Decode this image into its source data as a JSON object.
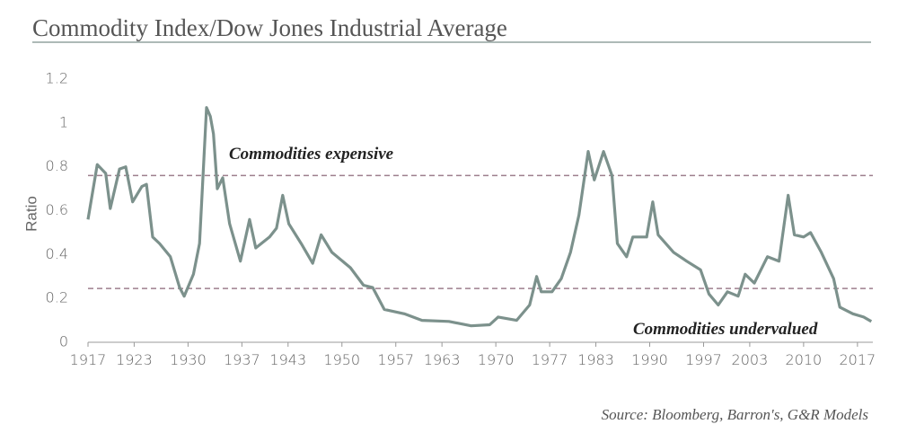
{
  "chart_data": {
    "type": "line",
    "title": "Commodity Index/Dow Jones Industrial Average",
    "y_label": "Ratio",
    "source": "Source: Bloomberg, Barron's, G&R Models",
    "xlim": [
      1917,
      2019
    ],
    "xticks": [
      1917,
      1923,
      1930,
      1937,
      1943,
      1950,
      1957,
      1963,
      1970,
      1977,
      1983,
      1990,
      1997,
      2003,
      2010,
      2017
    ],
    "ylim": [
      0,
      1.2
    ],
    "yticks": [
      0,
      0.2,
      0.4,
      0.6,
      0.8,
      1,
      1.2
    ],
    "annotations": [
      {
        "text": "Commodities expensive",
        "y": 0.76
      },
      {
        "text": "Commodities undervalued",
        "y": 0.245
      }
    ],
    "series": [
      {
        "name": "Commodity Index/DJIA",
        "color": "#7c918c",
        "x": [
          1917.0,
          1918.2,
          1919.3,
          1919.9,
          1921.1,
          1921.9,
          1922.8,
          1924.0,
          1924.6,
          1925.4,
          1926.3,
          1927.7,
          1928.9,
          1929.5,
          1930.7,
          1931.5,
          1932.4,
          1932.9,
          1933.3,
          1933.8,
          1934.5,
          1935.4,
          1936.8,
          1938.0,
          1938.8,
          1940.6,
          1941.5,
          1942.3,
          1943.1,
          1944.7,
          1946.2,
          1947.3,
          1948.7,
          1951.1,
          1952.8,
          1954.0,
          1955.5,
          1958.1,
          1960.4,
          1963.9,
          1966.8,
          1969.2,
          1970.3,
          1972.7,
          1974.4,
          1975.3,
          1975.9,
          1977.3,
          1978.5,
          1979.7,
          1980.8,
          1982.0,
          1982.8,
          1984.0,
          1985.1,
          1985.8,
          1987.0,
          1987.8,
          1989.6,
          1990.4,
          1991.1,
          1993.1,
          1994.8,
          1996.6,
          1997.7,
          1998.9,
          2000.1,
          2001.5,
          2002.4,
          2003.6,
          2005.3,
          2006.8,
          2008.0,
          2008.8,
          2010.0,
          2010.9,
          2012.3,
          2013.9,
          2014.7,
          2016.4,
          2017.8,
          2018.8
        ],
        "values": [
          0.56,
          0.81,
          0.77,
          0.61,
          0.79,
          0.8,
          0.64,
          0.71,
          0.72,
          0.48,
          0.45,
          0.39,
          0.25,
          0.21,
          0.31,
          0.45,
          1.07,
          1.03,
          0.95,
          0.7,
          0.75,
          0.54,
          0.37,
          0.56,
          0.43,
          0.48,
          0.52,
          0.67,
          0.54,
          0.45,
          0.36,
          0.49,
          0.41,
          0.34,
          0.26,
          0.25,
          0.15,
          0.13,
          0.1,
          0.095,
          0.075,
          0.08,
          0.115,
          0.1,
          0.17,
          0.3,
          0.23,
          0.23,
          0.29,
          0.41,
          0.58,
          0.87,
          0.74,
          0.87,
          0.76,
          0.45,
          0.39,
          0.48,
          0.48,
          0.64,
          0.49,
          0.41,
          0.37,
          0.33,
          0.22,
          0.17,
          0.23,
          0.21,
          0.31,
          0.27,
          0.39,
          0.37,
          0.67,
          0.49,
          0.48,
          0.5,
          0.41,
          0.29,
          0.16,
          0.13,
          0.115,
          0.095
        ]
      }
    ]
  }
}
